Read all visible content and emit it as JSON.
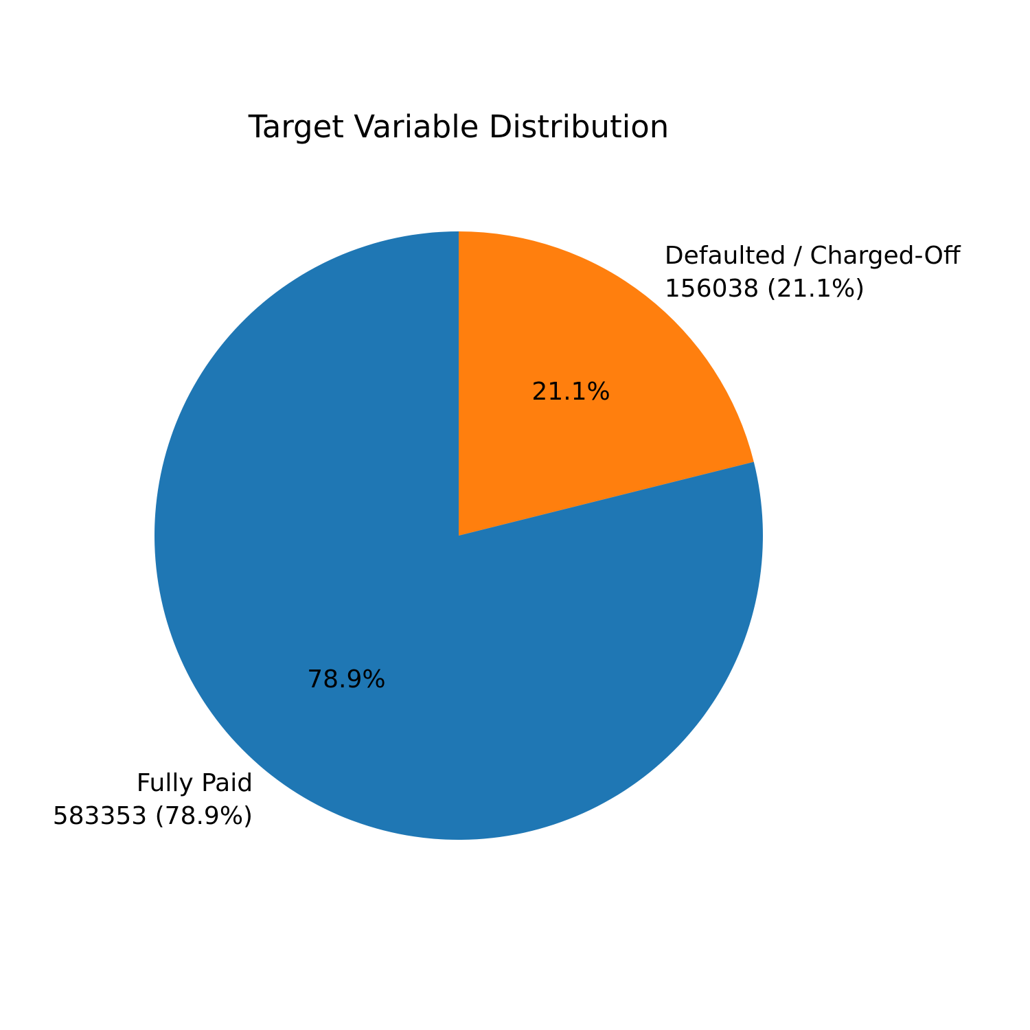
{
  "chart_data": {
    "type": "pie",
    "title": "Target Variable Distribution",
    "start_angle": "top",
    "direction": "clockwise",
    "slices": [
      {
        "name": "Defaulted / Charged-Off",
        "value": 156038,
        "count_label": "156038 (21.1%)",
        "percent_label": "21.1%",
        "color": "#ff7f0e"
      },
      {
        "name": "Fully Paid",
        "value": 583353,
        "count_label": "583353 (78.9%)",
        "percent_label": "78.9%",
        "color": "#1f77b4"
      }
    ]
  }
}
